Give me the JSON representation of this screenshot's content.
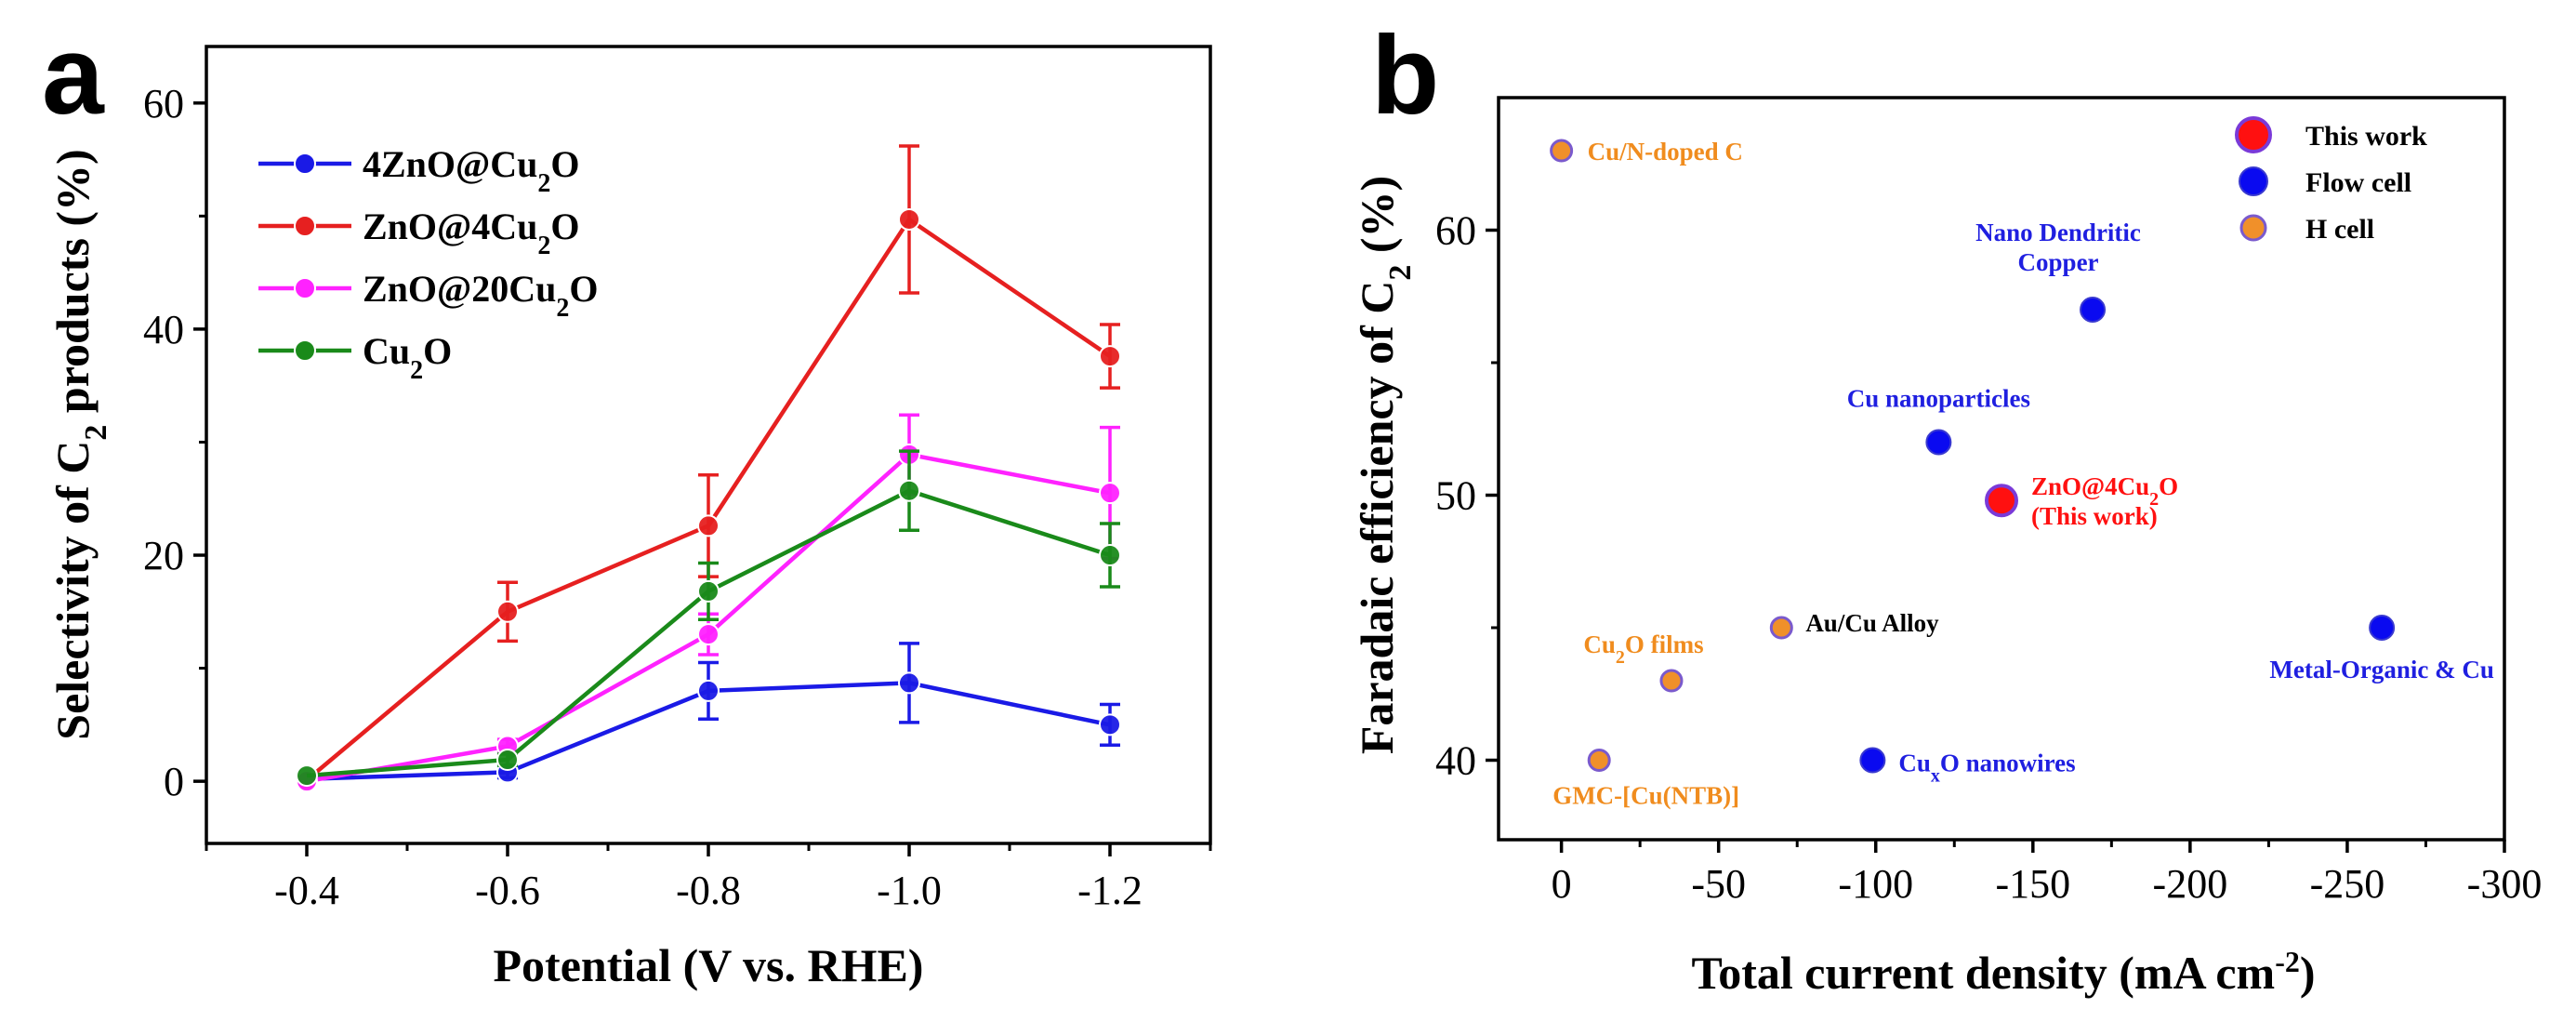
{
  "chart_data": [
    {
      "panel": "a",
      "type": "line",
      "xlabel": "Potential (V vs. RHE)",
      "ylabel": "Selectivity of C2 products (%)",
      "categories": [
        "-0.4",
        "-0.6",
        "-0.8",
        "-1.0",
        "-1.2"
      ],
      "x": [
        -0.4,
        -0.6,
        -0.8,
        -1.0,
        -1.2
      ],
      "xlim": [
        -0.3,
        -1.3
      ],
      "ylim": [
        -5.5,
        65
      ],
      "yticks": [
        0,
        20,
        40,
        60
      ],
      "grid": false,
      "legend_position": "top-left",
      "series": [
        {
          "name": "4ZnO@Cu2O",
          "color": "#1a1ae6",
          "values": [
            0.2,
            0.8,
            8.0,
            8.7,
            5.0
          ],
          "errors": [
            0,
            0.5,
            2.5,
            3.5,
            1.8
          ]
        },
        {
          "name": "ZnO@4Cu2O",
          "color": "#e62020",
          "values": [
            0.1,
            15.0,
            22.6,
            49.7,
            37.6
          ],
          "errors": [
            0,
            2.6,
            4.5,
            6.5,
            2.8
          ]
        },
        {
          "name": "ZnO@20Cu2O",
          "color": "#ff22ff",
          "values": [
            0.0,
            3.1,
            13.0,
            28.9,
            25.5
          ],
          "errors": [
            0,
            0.6,
            1.8,
            3.5,
            5.8
          ]
        },
        {
          "name": "Cu2O",
          "color": "#1a8a1a",
          "values": [
            0.5,
            1.9,
            16.8,
            25.7,
            20.0
          ],
          "errors": [
            0,
            0.5,
            2.5,
            3.5,
            2.8
          ]
        }
      ]
    },
    {
      "panel": "b",
      "type": "scatter",
      "xlabel": "Total current density (mA cm-2)",
      "ylabel": "Faradaic efficiency of C2 (%)",
      "xlim": [
        20,
        -300
      ],
      "ylim": [
        37,
        65
      ],
      "xticks": [
        0,
        -50,
        -100,
        -150,
        -200,
        -250,
        -300
      ],
      "yticks": [
        40,
        50,
        60
      ],
      "grid": false,
      "legend_position": "top-right",
      "legend": [
        {
          "label": "This work",
          "color": "#ff1010",
          "kind": "this"
        },
        {
          "label": "Flow cell",
          "color": "#0a0af0",
          "kind": "flow"
        },
        {
          "label": "H cell",
          "color": "#f0902a",
          "kind": "h"
        }
      ],
      "points": [
        {
          "x": 0,
          "y": 63,
          "label": "Cu/N-doped C",
          "kind": "h"
        },
        {
          "x": -12,
          "y": 40,
          "label": "GMC-[Cu(NTB)]",
          "kind": "h"
        },
        {
          "x": -35,
          "y": 43,
          "label": "Cu2O films",
          "kind": "h"
        },
        {
          "x": -70,
          "y": 45,
          "label": "Au/Cu Alloy",
          "kind": "h"
        },
        {
          "x": -99,
          "y": 40,
          "label": "CuxO nanowires",
          "kind": "flow"
        },
        {
          "x": -120,
          "y": 52,
          "label": "Cu nanoparticles",
          "kind": "flow"
        },
        {
          "x": -169,
          "y": 57,
          "label": "Nano Dendritic Copper",
          "kind": "flow"
        },
        {
          "x": -261,
          "y": 45,
          "label": "Metal-Organic & Cu",
          "kind": "flow"
        },
        {
          "x": -140,
          "y": 49.8,
          "label": "ZnO@4Cu2O (This work)",
          "kind": "this"
        }
      ]
    }
  ]
}
